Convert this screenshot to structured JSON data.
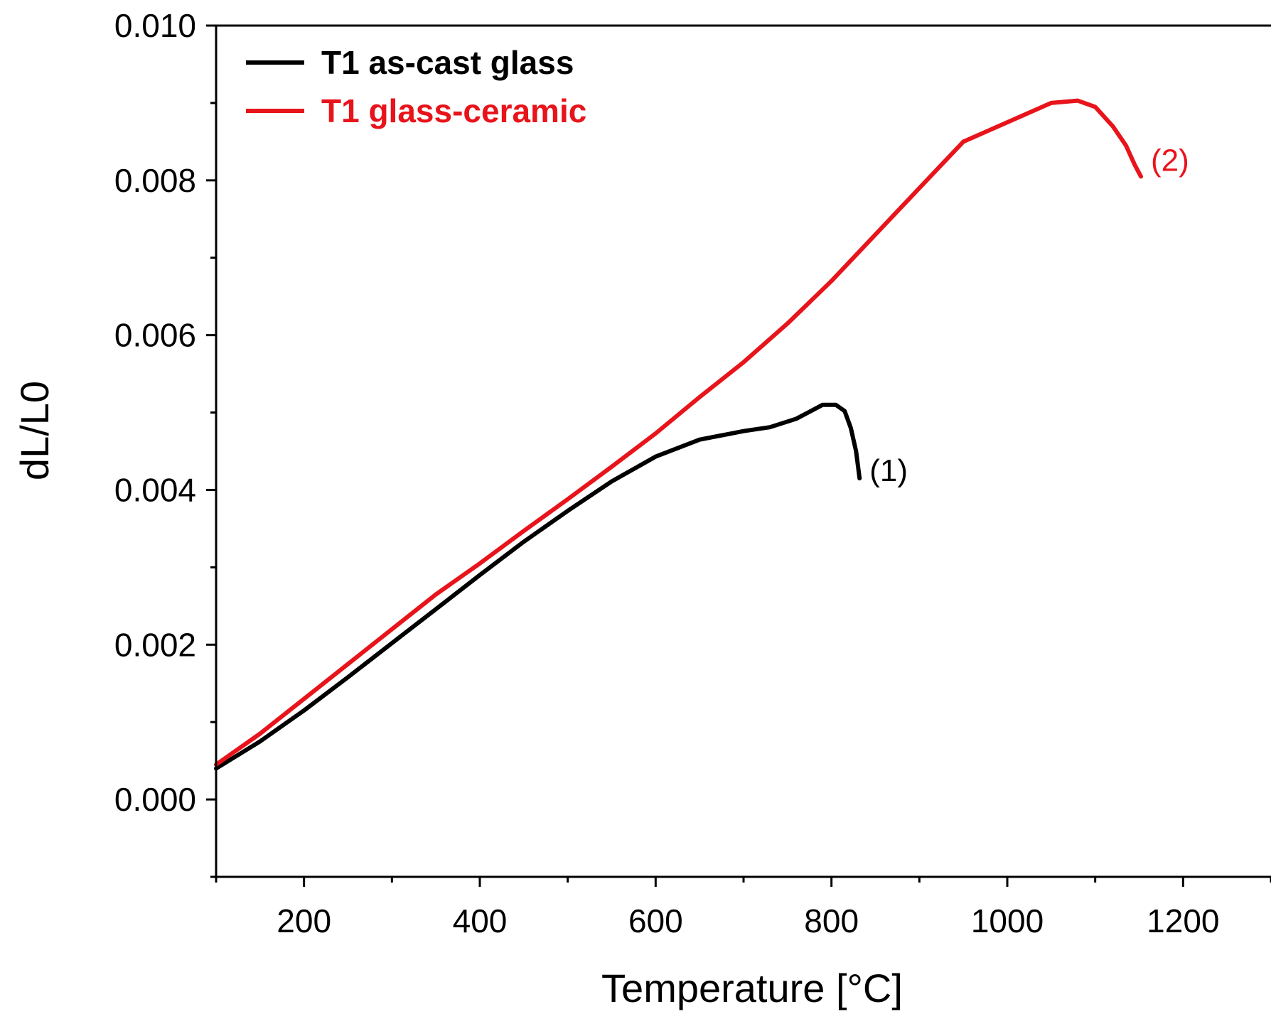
{
  "chart_data": {
    "type": "line",
    "xlabel": "Temperature [°C]",
    "ylabel": "dL/L0",
    "xlim": [
      100,
      1300
    ],
    "ylim": [
      -0.001,
      0.01
    ],
    "x_ticks": [
      200,
      400,
      600,
      800,
      1000,
      1200
    ],
    "x_tick_labels": [
      "200",
      "400",
      "600",
      "800",
      "1000",
      "1200"
    ],
    "y_ticks": [
      0.0,
      0.002,
      0.004,
      0.006,
      0.008,
      0.01
    ],
    "y_tick_labels": [
      "0.000",
      "0.002",
      "0.004",
      "0.006",
      "0.008",
      "0.010"
    ],
    "grid": false,
    "legend_position": "top-left",
    "series": [
      {
        "name": "T1 as-cast glass",
        "color": "#000000",
        "annotation": "(1)",
        "x": [
          100,
          150,
          200,
          250,
          300,
          350,
          400,
          450,
          500,
          550,
          600,
          650,
          700,
          730,
          760,
          790,
          805,
          815,
          822,
          828,
          832
        ],
        "y": [
          0.0004,
          0.00075,
          0.00115,
          0.00158,
          0.00202,
          0.00246,
          0.0029,
          0.00333,
          0.00373,
          0.00411,
          0.00443,
          0.00465,
          0.00476,
          0.00481,
          0.00492,
          0.0051,
          0.0051,
          0.00502,
          0.0048,
          0.0045,
          0.00415
        ]
      },
      {
        "name": "T1 glass-ceramic",
        "color": "#e8141b",
        "annotation": "(2)",
        "x": [
          100,
          150,
          200,
          250,
          300,
          350,
          400,
          450,
          500,
          550,
          600,
          650,
          700,
          750,
          800,
          850,
          900,
          950,
          1000,
          1050,
          1080,
          1100,
          1120,
          1135,
          1145,
          1152
        ],
        "y": [
          0.00045,
          0.00085,
          0.0013,
          0.00175,
          0.0022,
          0.00265,
          0.00305,
          0.00347,
          0.00388,
          0.0043,
          0.00473,
          0.0052,
          0.00565,
          0.00615,
          0.0067,
          0.0073,
          0.0079,
          0.0085,
          0.00875,
          0.009,
          0.00903,
          0.00895,
          0.0087,
          0.00845,
          0.0082,
          0.00805
        ]
      }
    ]
  }
}
